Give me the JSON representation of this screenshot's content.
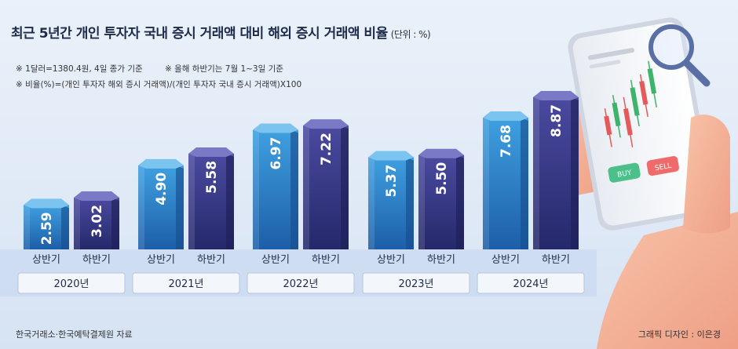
{
  "title": "최근 5년간 개인 투자자 국내 증시 거래액 대비 해외 증시 거래액 비율",
  "unit": "(단위 : %)",
  "notes": [
    "※  1달러=1380.4원, 4일 종가 기준",
    "※  올해 하반기는 7월 1~3일 기준",
    "※  비율(%)=(개인 투자자 해외 증시 거래액)/(개인 투자자 국내 증시 거래액)X100"
  ],
  "source": "한국거래소·한국예탁결제원 자료",
  "credit": "그래픽 디자인 : 이은경",
  "phone": {
    "buy": "BUY",
    "sell": "SELL"
  },
  "colors": {
    "first_half_top": "#3fa0e0",
    "first_half_bottom": "#1d5ea8",
    "second_half_top": "#4b4aa0",
    "second_half_bottom": "#25286a"
  },
  "chart_data": {
    "type": "bar",
    "categories": [
      "2020년",
      "2021년",
      "2022년",
      "2023년",
      "2024년"
    ],
    "subcategories": [
      "상반기",
      "하반기"
    ],
    "series": [
      {
        "values": [
          2.59,
          4.9,
          6.97,
          5.37,
          7.68
        ],
        "labels": [
          "2.59",
          "4.90",
          "6.97",
          "5.37",
          "7.68"
        ]
      },
      {
        "values": [
          3.02,
          5.58,
          7.22,
          5.5,
          8.87
        ],
        "labels": [
          "3.02",
          "5.58",
          "7.22",
          "5.50",
          "8.87"
        ]
      }
    ],
    "ylim": [
      0,
      9.6
    ]
  }
}
